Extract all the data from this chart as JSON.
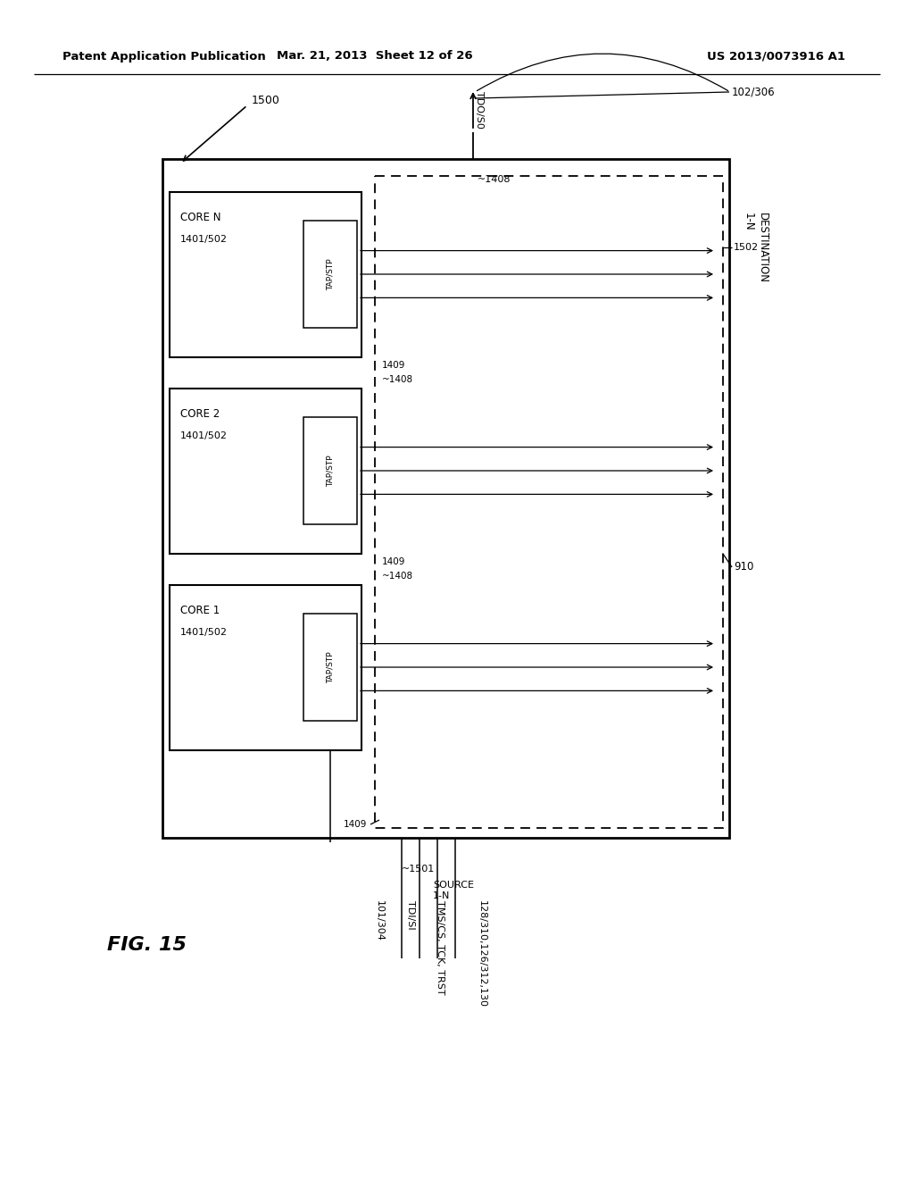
{
  "bg": "#ffffff",
  "lc": "#000000",
  "header_left": "Patent Application Publication",
  "header_mid": "Mar. 21, 2013  Sheet 12 of 26",
  "header_right": "US 2013/0073916 A1",
  "fig_label": "FIG. 15",
  "label_1500": "1500",
  "label_tdo": "TDO/S0",
  "label_102_306": "102/306",
  "label_1408_top": "1408",
  "label_910": "910",
  "label_1502": "1502",
  "label_destination": "DESTINATION\n1-N",
  "label_1501": "1501",
  "label_source": "SOURCE\n1-N",
  "label_101_304": "101/304",
  "label_tdi": "TDI/SI",
  "label_tms": "TMS/CS, TCK, TRST",
  "label_128": "128/310,126/312,130",
  "label_1409": "1409",
  "label_1408": "1408",
  "label_tap": "TAP/STP",
  "core_labels": [
    [
      "CORE N",
      "1401/502"
    ],
    [
      "CORE 2",
      "1401/502"
    ],
    [
      "CORE 1",
      "1401/502"
    ]
  ]
}
